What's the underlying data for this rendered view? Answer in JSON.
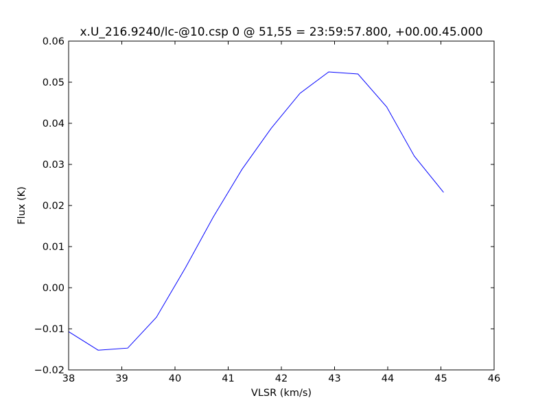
{
  "chart_data": {
    "type": "line",
    "title": "x.U_216.9240/lc-@10.csp 0 @ 51,55 = 23:59:57.800, +00.00.45.000",
    "x_label": "VLSR (km/s)",
    "y_label": "Flux (K)",
    "x": [
      38.0,
      38.555,
      39.11,
      39.65,
      40.19,
      40.72,
      41.26,
      41.81,
      42.35,
      42.89,
      43.44,
      43.98,
      44.5,
      45.05
    ],
    "series": [
      {
        "name": "Flux",
        "color": "#0000ff",
        "values": [
          -0.0107,
          -0.0152,
          -0.0147,
          -0.0072,
          0.0047,
          0.0172,
          0.0288,
          0.0388,
          0.0473,
          0.0525,
          0.052,
          0.044,
          0.032,
          0.0232
        ]
      }
    ],
    "xlim": [
      38,
      46
    ],
    "xticks": [
      38,
      39,
      40,
      41,
      42,
      43,
      44,
      45,
      46
    ],
    "ylim": [
      -0.02,
      0.06
    ],
    "yticks": [
      {
        "value": -0.02,
        "label": "−0.02"
      },
      {
        "value": -0.01,
        "label": "−0.01"
      },
      {
        "value": 0,
        "label": "0.00"
      },
      0.01,
      0.02,
      0.03,
      0.04,
      0.05,
      0.06
    ],
    "grid": false
  }
}
